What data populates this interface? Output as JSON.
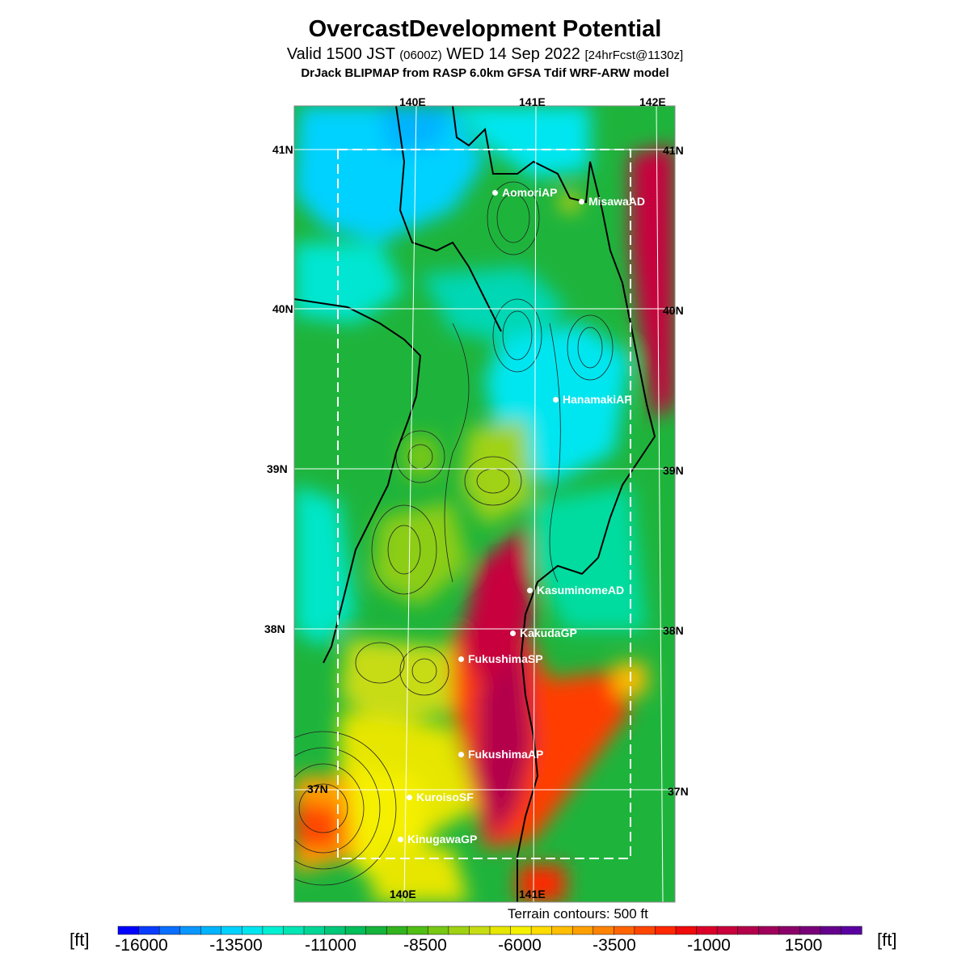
{
  "title": "OvercastDevelopment Potential",
  "subtitle": {
    "main_prefix": "Valid 1500 JST ",
    "zulu": "(0600Z)",
    "main_suffix": " WED 14 Sep 2022 ",
    "forecast": "[24hrFcst@1130z]"
  },
  "model_line": "DrJack BLIPMAP from RASP 6.0km GFSA Tdif WRF-ARW model",
  "axes": {
    "lon_top": [
      "140E",
      "141E",
      "142E"
    ],
    "lon_bottom": [
      "140E",
      "141E"
    ],
    "lat_left": [
      "41N",
      "40N",
      "39N",
      "38N",
      "37N"
    ],
    "lat_right": [
      "41N",
      "40N",
      "39N",
      "38N",
      "37N"
    ]
  },
  "stations": [
    {
      "name": "AomoriAP"
    },
    {
      "name": "MisawaAD"
    },
    {
      "name": "HanamakiAP"
    },
    {
      "name": "KasuminomeAD"
    },
    {
      "name": "KakudaGP"
    },
    {
      "name": "FukushimaSP"
    },
    {
      "name": "FukushimaAP"
    },
    {
      "name": "KuroisoSF"
    },
    {
      "name": "KinugawaGP"
    }
  ],
  "terrain_note": "Terrain contours: 500 ft",
  "colorbar": {
    "unit": "[ft]",
    "tick_labels": [
      "-16000",
      "-13500",
      "-11000",
      "-8500",
      "-6000",
      "-3500",
      "-1000",
      "1500"
    ],
    "colors": [
      "#0000ff",
      "#0a3cff",
      "#0a6eff",
      "#0a96ff",
      "#00b4ff",
      "#00d2ff",
      "#00e6f0",
      "#00f0d2",
      "#00e6b4",
      "#00d796",
      "#00c878",
      "#00be5a",
      "#14b43c",
      "#32b41e",
      "#50be14",
      "#78c814",
      "#a0d214",
      "#c8dc14",
      "#e6e600",
      "#f5f000",
      "#ffdc00",
      "#ffbe00",
      "#ffa000",
      "#ff8200",
      "#ff6400",
      "#ff4600",
      "#ff2800",
      "#f00a0a",
      "#dc0028",
      "#c8003c",
      "#b4004b",
      "#a0005a",
      "#8c0069",
      "#780078",
      "#64008c",
      "#5a00a0"
    ]
  }
}
